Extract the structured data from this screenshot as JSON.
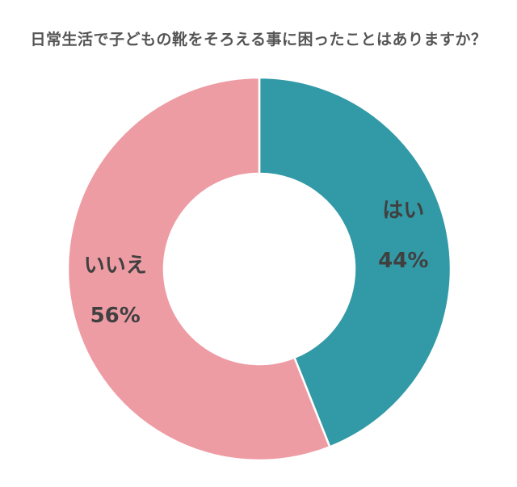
{
  "chart_data": {
    "type": "pie",
    "title": "日常生活で子どもの靴をそろえる事に困ったことはありますか？",
    "donut": true,
    "categories": [
      "はい",
      "いいえ"
    ],
    "values": [
      44,
      56
    ],
    "value_labels": [
      "44%",
      "56%"
    ],
    "colors": [
      "#329aa6",
      "#ee9ca4"
    ],
    "start": "12 o'clock",
    "direction": "clockwise"
  }
}
